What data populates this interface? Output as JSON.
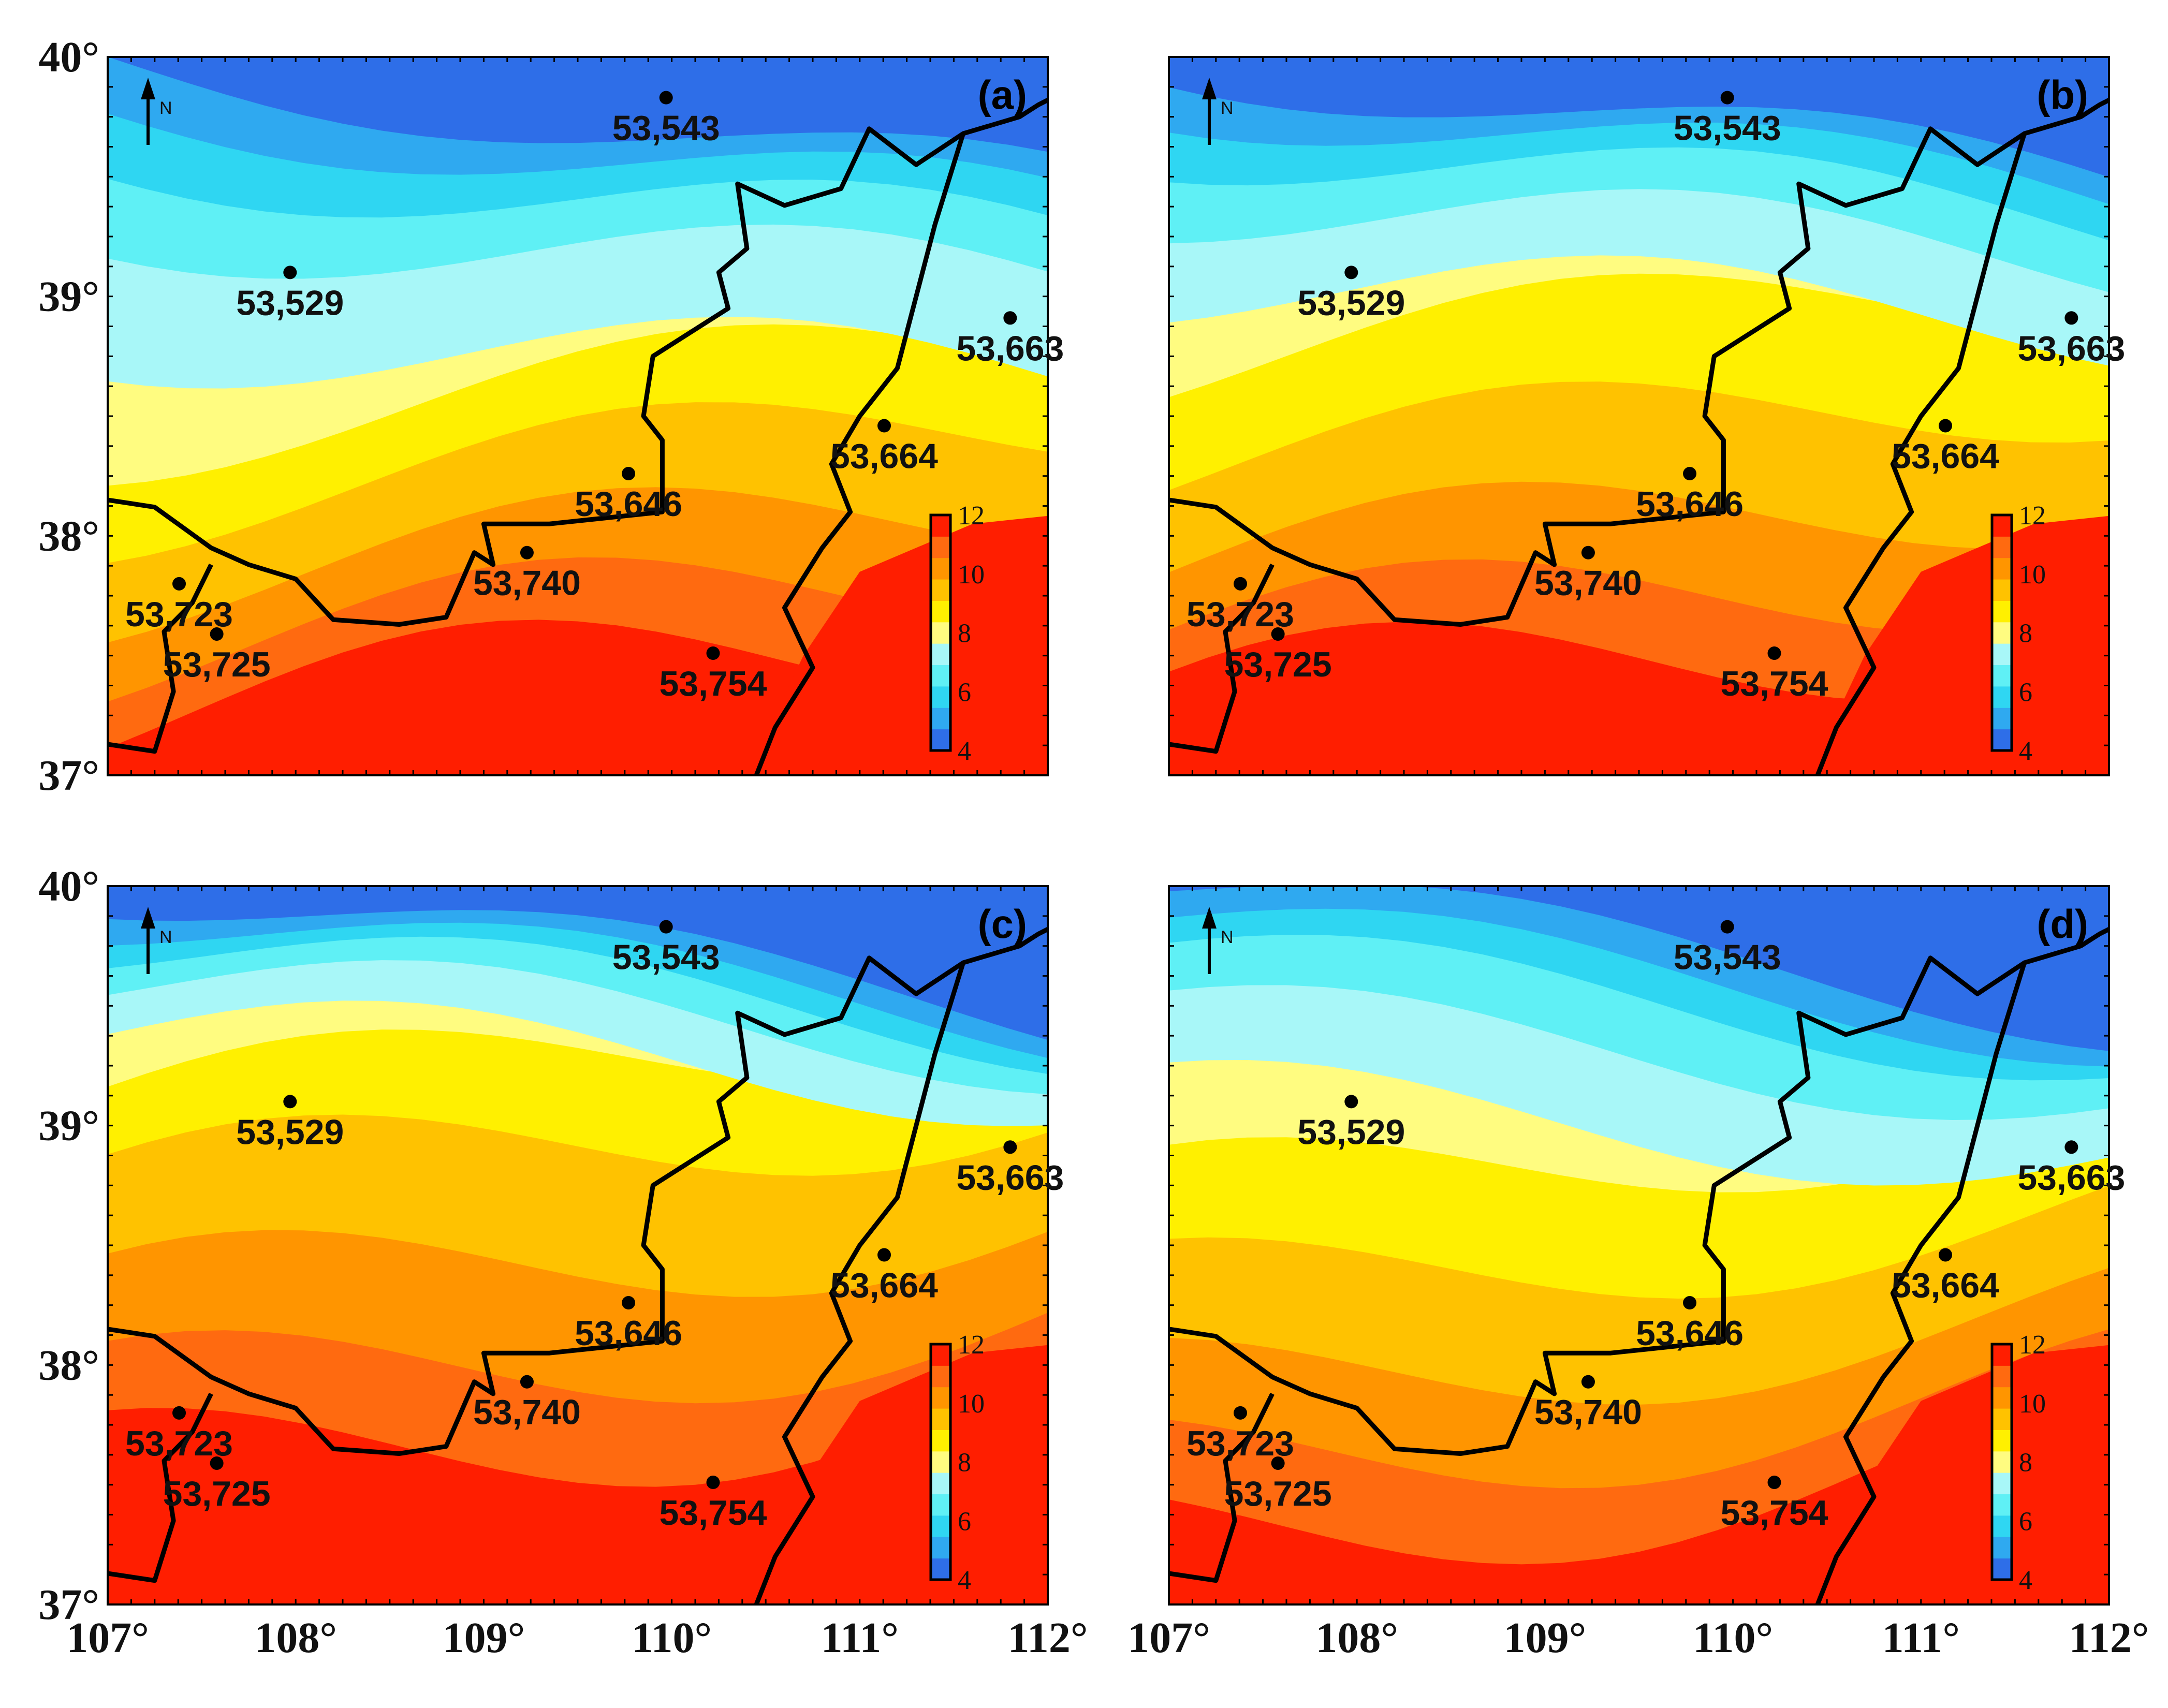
{
  "panels": [
    {
      "id": "a",
      "label": "(a)"
    },
    {
      "id": "b",
      "label": "(b)"
    },
    {
      "id": "c",
      "label": "(c)"
    },
    {
      "id": "d",
      "label": "(d)"
    }
  ],
  "north_arrow": {
    "label": "N"
  },
  "axes": {
    "x_ticks": [
      "107°",
      "108°",
      "109°",
      "110°",
      "111°",
      "112°"
    ],
    "y_ticks": [
      "37°",
      "38°",
      "39°",
      "40°"
    ],
    "x_range": [
      107,
      112
    ],
    "y_range": [
      37,
      40
    ]
  },
  "colorbar": {
    "ticks": [
      "4",
      "6",
      "8",
      "10",
      "12"
    ],
    "range": [
      4,
      12
    ],
    "colors": [
      "#2e6ee8",
      "#2fa9f0",
      "#2fd6f2",
      "#5ff0f5",
      "#a8f7f8",
      "#fffc80",
      "#fff000",
      "#ffc200",
      "#ff9500",
      "#ff6a10",
      "#ff1e00"
    ]
  },
  "stations": [
    {
      "id": "53543",
      "label": "53,543",
      "lon": 109.97,
      "lat": 39.83
    },
    {
      "id": "53529",
      "label": "53,529",
      "lon": 107.97,
      "lat": 39.1
    },
    {
      "id": "53663",
      "label": "53,663",
      "lon": 111.8,
      "lat": 38.91
    },
    {
      "id": "53664",
      "label": "53,664",
      "lon": 111.13,
      "lat": 38.46
    },
    {
      "id": "53646",
      "label": "53,646",
      "lon": 109.77,
      "lat": 38.26
    },
    {
      "id": "53740",
      "label": "53,740",
      "lon": 109.23,
      "lat": 37.93
    },
    {
      "id": "53723",
      "label": "53,723",
      "lon": 107.38,
      "lat": 37.8
    },
    {
      "id": "53725",
      "label": "53,725",
      "lon": 107.58,
      "lat": 37.59
    },
    {
      "id": "53754",
      "label": "53,754",
      "lon": 110.22,
      "lat": 37.51
    }
  ]
}
